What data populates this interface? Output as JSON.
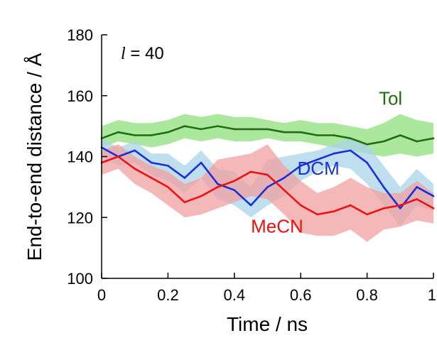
{
  "chart_data": {
    "type": "line",
    "xlabel": "Time / ns",
    "ylabel": "End-to-end distance / Å",
    "annotation": {
      "italic": "l",
      "text": " = 40"
    },
    "xlim": [
      0,
      1
    ],
    "ylim": [
      100,
      180
    ],
    "xticks": [
      0,
      0.2,
      0.4,
      0.6,
      0.8,
      1
    ],
    "xtick_labels": [
      "0",
      "0.2",
      "0.4",
      "0.6",
      "0.8",
      "1"
    ],
    "yticks": [
      100,
      120,
      140,
      160,
      180
    ],
    "ytick_labels": [
      "100",
      "120",
      "140",
      "160",
      "180"
    ],
    "grid": false,
    "legend": "inline labels",
    "series": [
      {
        "name": "Tol",
        "color": "#1f6e12",
        "band_color": "#8fe07c",
        "x": [
          0,
          0.05,
          0.1,
          0.15,
          0.2,
          0.25,
          0.3,
          0.35,
          0.4,
          0.45,
          0.5,
          0.55,
          0.6,
          0.65,
          0.7,
          0.75,
          0.8,
          0.85,
          0.9,
          0.95,
          1
        ],
        "values": [
          146,
          148,
          147,
          147,
          148,
          150,
          149,
          150,
          149,
          149,
          149,
          148,
          148,
          147,
          147,
          146,
          144,
          145,
          147,
          145,
          146
        ],
        "upper": [
          150,
          152,
          151,
          151,
          152,
          154,
          153,
          154,
          153,
          153,
          152,
          151,
          152,
          151,
          151,
          150,
          149,
          151,
          154,
          152,
          151
        ],
        "lower": [
          143,
          145,
          144,
          143,
          144,
          146,
          145,
          146,
          145,
          145,
          146,
          145,
          145,
          144,
          143,
          142,
          141,
          140,
          141,
          140,
          141
        ]
      },
      {
        "name": "DCM",
        "color": "#1a2fd6",
        "band_color": "#a9d4e8",
        "x": [
          0,
          0.05,
          0.1,
          0.15,
          0.2,
          0.25,
          0.3,
          0.35,
          0.4,
          0.45,
          0.5,
          0.55,
          0.6,
          0.65,
          0.7,
          0.75,
          0.8,
          0.85,
          0.9,
          0.95,
          1
        ],
        "values": [
          143,
          140,
          142,
          138,
          137,
          133,
          138,
          131,
          129,
          124,
          130,
          133,
          137,
          139,
          141,
          142,
          138,
          130,
          123,
          130,
          127
        ],
        "upper": [
          146,
          143,
          145,
          141,
          141,
          137,
          142,
          136,
          135,
          130,
          139,
          140,
          141,
          142,
          144,
          146,
          144,
          137,
          130,
          136,
          131
        ],
        "lower": [
          140,
          137,
          138,
          134,
          132,
          128,
          133,
          126,
          124,
          120,
          124,
          127,
          132,
          135,
          137,
          136,
          131,
          124,
          117,
          124,
          122
        ]
      },
      {
        "name": "MeCN",
        "color": "#ee1111",
        "band_color": "#f2a0a0",
        "x": [
          0,
          0.05,
          0.1,
          0.15,
          0.2,
          0.25,
          0.3,
          0.35,
          0.4,
          0.45,
          0.5,
          0.55,
          0.6,
          0.65,
          0.7,
          0.75,
          0.8,
          0.85,
          0.9,
          0.95,
          1
        ],
        "values": [
          138,
          140,
          136,
          133,
          130,
          125,
          127,
          130,
          132,
          135,
          134,
          129,
          124,
          121,
          122,
          124,
          121,
          123,
          124,
          126,
          123
        ],
        "upper": [
          142,
          144,
          140,
          137,
          135,
          131,
          133,
          139,
          140,
          141,
          144,
          137,
          132,
          128,
          130,
          133,
          130,
          128,
          128,
          132,
          128
        ],
        "lower": [
          134,
          136,
          131,
          128,
          124,
          120,
          121,
          123,
          125,
          127,
          126,
          121,
          115,
          114,
          114,
          116,
          112,
          116,
          117,
          119,
          118
        ]
      }
    ],
    "series_label_positions": {
      "Tol": {
        "x": 0.835,
        "y": 157
      },
      "DCM": {
        "x": 0.59,
        "y": 134
      },
      "MeCN": {
        "x": 0.45,
        "y": 115
      }
    }
  }
}
